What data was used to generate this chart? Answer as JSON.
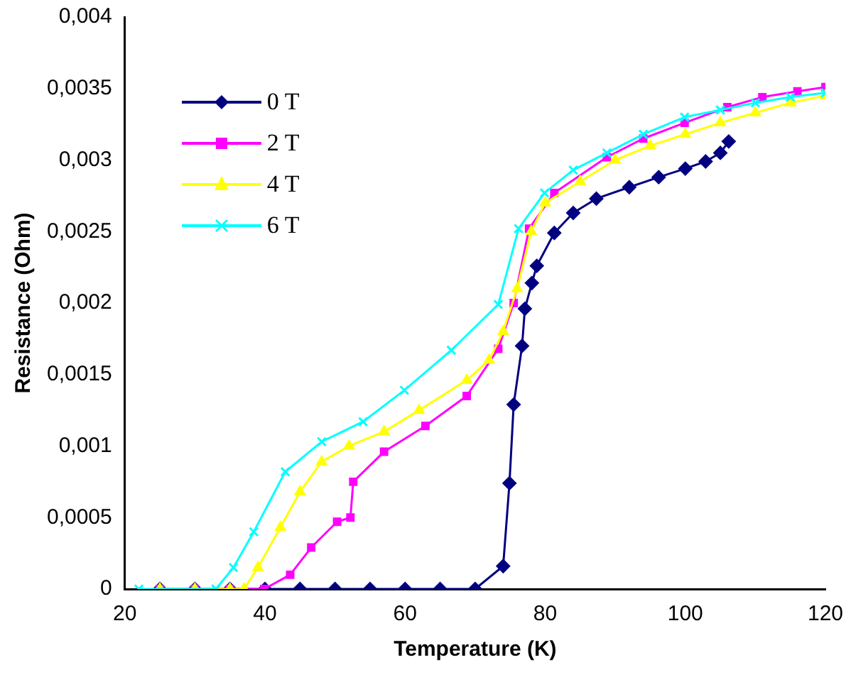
{
  "chart_data": {
    "type": "line",
    "xlabel": "Temperature (K)",
    "ylabel": "Resistance (Ohm)",
    "xlim": [
      20,
      120
    ],
    "xticks": [
      20,
      40,
      60,
      80,
      100,
      120
    ],
    "ylim": [
      0,
      0.004
    ],
    "yticks": [
      {
        "value": 0,
        "label": "0"
      },
      {
        "value": 0.0005,
        "label": "0,0005"
      },
      {
        "value": 0.001,
        "label": "0,001"
      },
      {
        "value": 0.0015,
        "label": "0,0015"
      },
      {
        "value": 0.002,
        "label": "0,002"
      },
      {
        "value": 0.0025,
        "label": "0,0025"
      },
      {
        "value": 0.003,
        "label": "0,003"
      },
      {
        "value": 0.0035,
        "label": "0,0035"
      },
      {
        "value": 0.004,
        "label": "0,004"
      }
    ],
    "grid": false,
    "legend": "top left",
    "line_style": "solid",
    "series": [
      {
        "name": "0 T",
        "color": "#000080",
        "marker": "diamond",
        "x": [
          25,
          30,
          35,
          40,
          45,
          50,
          55,
          60,
          65,
          70,
          74,
          74.9,
          75.5,
          76.7,
          77.1,
          78.1,
          78.8,
          81.3,
          84,
          87.3,
          92,
          96.2,
          100,
          102.9,
          105,
          106.2
        ],
        "values": [
          0,
          0,
          0,
          0,
          0,
          0,
          0,
          0,
          0,
          0,
          0.00016,
          0.00074,
          0.00129,
          0.0017,
          0.00196,
          0.00214,
          0.00226,
          0.00249,
          0.00263,
          0.00273,
          0.00281,
          0.00288,
          0.00294,
          0.00299,
          0.00305,
          0.00313
        ]
      },
      {
        "name": "2 T",
        "color": "#ff00ff",
        "marker": "square",
        "x": [
          25,
          30,
          35,
          39.9,
          43.6,
          46.6,
          50.3,
          52.2,
          52.6,
          57,
          62.9,
          68.8,
          73.3,
          75.5,
          77.7,
          81.3,
          88.8,
          94,
          99.9,
          106,
          111,
          116,
          120
        ],
        "values": [
          0,
          0,
          0,
          0,
          0.0001,
          0.00029,
          0.00047,
          0.0005,
          0.00075,
          0.00096,
          0.00114,
          0.00135,
          0.00168,
          0.002,
          0.00252,
          0.00277,
          0.00302,
          0.00315,
          0.00326,
          0.00337,
          0.00344,
          0.00348,
          0.00351
        ]
      },
      {
        "name": "4 T",
        "color": "#ffff00",
        "marker": "triangle",
        "x": [
          25,
          30,
          35,
          37,
          39,
          42.2,
          45,
          48.1,
          52,
          57,
          62,
          68.8,
          72,
          74,
          76,
          78,
          80,
          85,
          90,
          95,
          100,
          105,
          110,
          115,
          120
        ],
        "values": [
          0,
          0,
          0,
          0,
          0.00015,
          0.00043,
          0.00068,
          0.00089,
          0.001,
          0.0011,
          0.00125,
          0.00146,
          0.0016,
          0.0018,
          0.0021,
          0.0025,
          0.0027,
          0.00285,
          0.003,
          0.0031,
          0.00318,
          0.00326,
          0.00333,
          0.0034,
          0.00345
        ]
      },
      {
        "name": "6 T",
        "color": "#00ffff",
        "marker": "cross",
        "x": [
          22,
          33,
          35.5,
          38.4,
          42.9,
          48.1,
          54,
          59.9,
          66.6,
          73.3,
          76.2,
          79.9,
          84,
          88.8,
          94,
          99.9,
          105,
          110,
          115,
          120
        ],
        "values": [
          0,
          0,
          0.00015,
          0.0004,
          0.00082,
          0.00103,
          0.00117,
          0.00139,
          0.00167,
          0.00199,
          0.00252,
          0.00277,
          0.00293,
          0.00305,
          0.00318,
          0.0033,
          0.00335,
          0.0034,
          0.00344,
          0.00347
        ]
      }
    ]
  }
}
